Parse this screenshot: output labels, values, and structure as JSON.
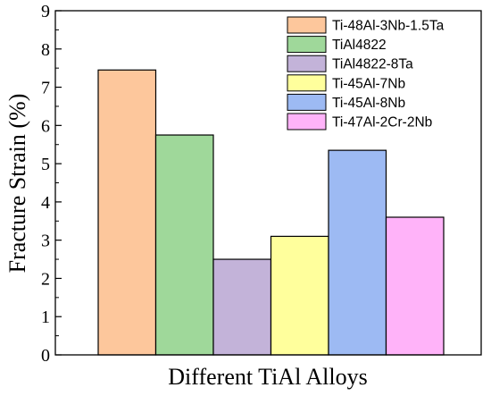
{
  "chart_data": {
    "type": "bar",
    "title": "",
    "xlabel": "Different TiAl Alloys",
    "ylabel": "Fracture Strain (%)",
    "ylim": [
      0,
      9
    ],
    "yticks": [
      "0",
      "1",
      "2",
      "3",
      "4",
      "5",
      "6",
      "7",
      "8",
      "9"
    ],
    "grid": false,
    "legend_position": "top-right",
    "series": [
      {
        "name": "Ti-48Al-3Nb-1.5Ta",
        "value": 7.45,
        "color": "#fdc79c"
      },
      {
        "name": "TiAl4822",
        "value": 5.75,
        "color": "#9fd89a"
      },
      {
        "name": "TiAl4822-8Ta",
        "value": 2.5,
        "color": "#c3b3d9"
      },
      {
        "name": "Ti-45Al-7Nb",
        "value": 3.1,
        "color": "#ffff9c"
      },
      {
        "name": "Ti-45Al-8Nb",
        "value": 5.35,
        "color": "#9dbaf3"
      },
      {
        "name": "Ti-47Al-2Cr-2Nb",
        "value": 3.6,
        "color": "#ffb3f9"
      }
    ]
  }
}
